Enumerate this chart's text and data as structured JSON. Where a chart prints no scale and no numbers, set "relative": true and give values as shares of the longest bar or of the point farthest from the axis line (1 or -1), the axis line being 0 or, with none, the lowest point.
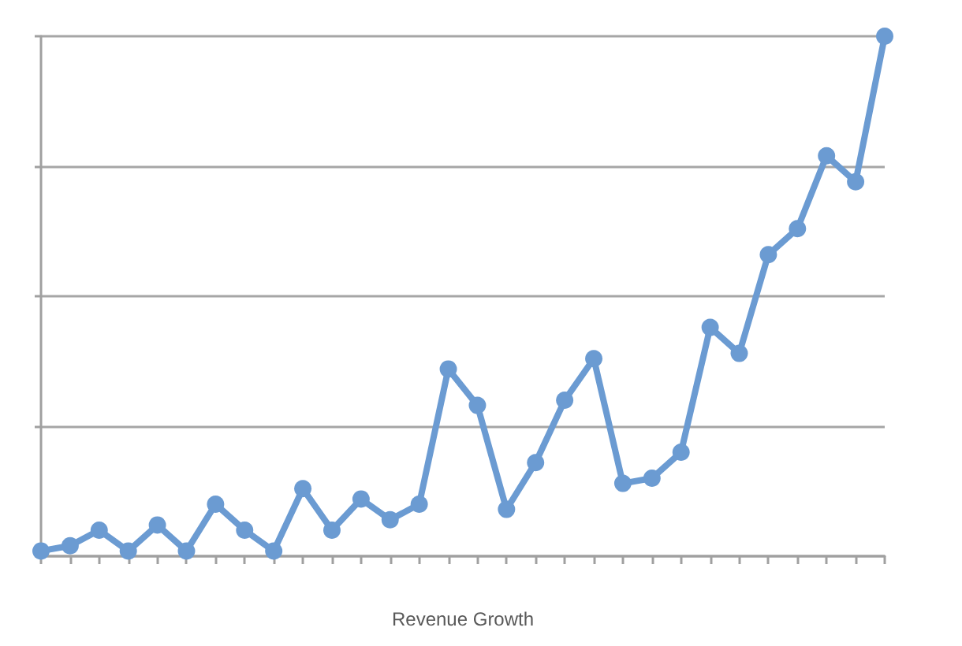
{
  "chart_data": {
    "type": "line",
    "xlabel": "Revenue Growth",
    "categories": [
      null,
      null,
      null,
      null,
      null,
      null,
      null,
      null,
      null,
      null,
      null,
      null,
      null,
      null,
      null,
      null,
      null,
      null,
      null,
      null,
      null,
      null,
      null,
      null,
      null,
      null,
      null,
      null,
      null,
      null
    ],
    "series": [
      {
        "color": "#6b9bd2",
        "values": [
          0.01,
          0.02,
          0.05,
          0.01,
          0.06,
          0.01,
          0.1,
          0.05,
          0.01,
          0.13,
          0.05,
          0.11,
          0.07,
          0.1,
          0.36,
          0.29,
          0.09,
          0.18,
          0.3,
          0.38,
          0.14,
          0.15,
          0.2,
          0.44,
          0.39,
          0.58,
          0.63,
          0.77,
          0.72,
          1.0
        ]
      }
    ],
    "relative": true,
    "grid": "y",
    "marker": "circle",
    "line_style": "solid"
  }
}
